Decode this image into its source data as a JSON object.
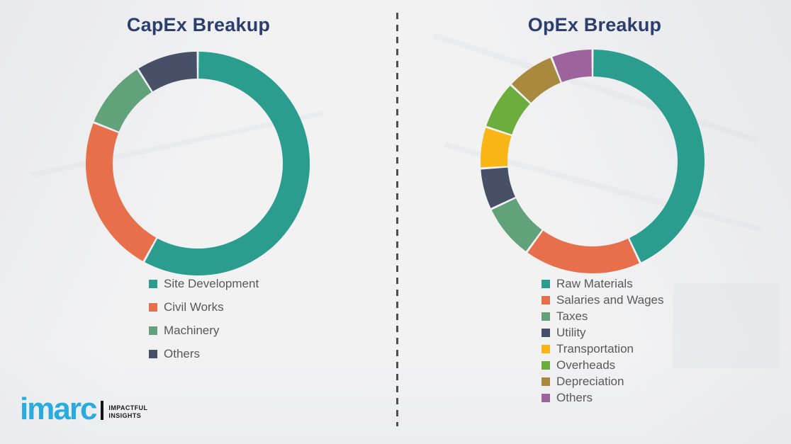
{
  "theme": {
    "background": "#F2F2F3",
    "title_color": "#2C3E6E",
    "legend_text_color": "#595959",
    "divider_color": "#4E4E4E"
  },
  "chart_data": [
    {
      "type": "pie",
      "subtype": "donut",
      "title": "CapEx Breakup",
      "start_angle_deg": 0,
      "direction": "clockwise",
      "labels": [
        "Site Development",
        "Civil Works",
        "Machinery",
        "Others"
      ],
      "values": [
        58,
        23,
        10,
        9
      ],
      "unit": "percent-estimated-from-arc-angles",
      "colors": [
        "#2A9D8F",
        "#E76F4B",
        "#61A27B",
        "#485068"
      ],
      "legend_position": "below"
    },
    {
      "type": "pie",
      "subtype": "donut",
      "title": "OpEx Breakup",
      "start_angle_deg": 0,
      "direction": "clockwise",
      "labels": [
        "Raw Materials",
        "Salaries and Wages",
        "Taxes",
        "Utility",
        "Transportation",
        "Overheads",
        "Depreciation",
        "Others"
      ],
      "values": [
        43,
        17,
        8,
        6,
        6,
        7,
        7,
        6
      ],
      "unit": "percent-estimated-from-arc-angles",
      "colors": [
        "#2A9D8F",
        "#E76F4B",
        "#61A27B",
        "#485068",
        "#F9B616",
        "#6BAE3E",
        "#A8893E",
        "#9D639C"
      ],
      "legend_position": "below"
    }
  ],
  "logo": {
    "wordmark": "imarc",
    "wordmark_color": "#29ABE2",
    "tagline": [
      "IMPACTFUL",
      "INSIGHTS"
    ]
  }
}
